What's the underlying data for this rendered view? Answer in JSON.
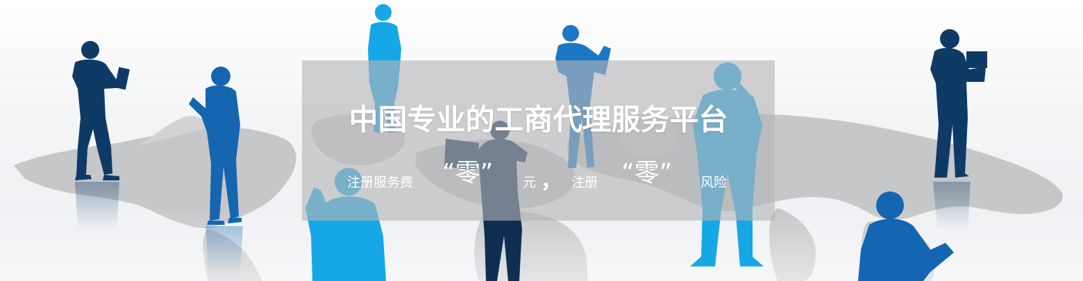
{
  "banner": {
    "headline": "中国专业的工商代理服务平台",
    "tagline": {
      "part1": "注册服务费",
      "zero1": "“零”",
      "part2": "元",
      "comma": "，",
      "part3": "注册",
      "zero2": "“零”",
      "part4": "风险"
    }
  },
  "colors": {
    "overlay": "#b4b4b6",
    "text": "#ffffff",
    "map": "#c8c9cb",
    "silhouette_dark": "#0e3a66",
    "silhouette_mid": "#1566b0",
    "silhouette_light": "#16a7e6"
  },
  "background": {
    "description_icons": [
      "world-map",
      "people-silhouettes"
    ]
  }
}
